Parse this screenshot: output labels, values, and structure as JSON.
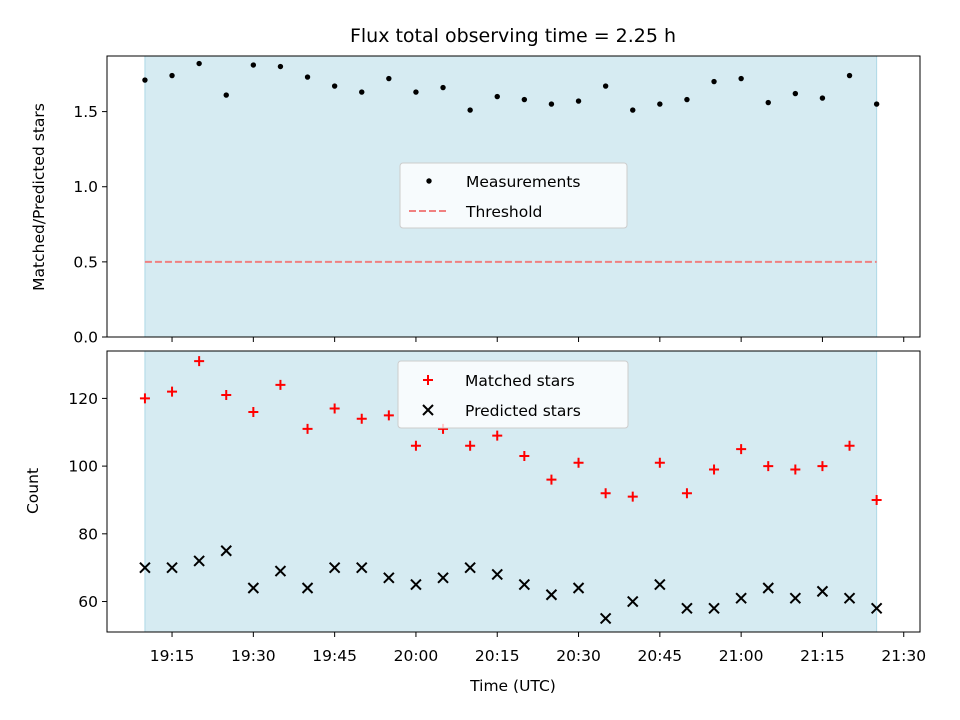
{
  "figure": {
    "title": "Flux total observing time = 2.25 h",
    "xlabel": "Time (UTC)",
    "x_tick_labels": [
      "19:15",
      "19:30",
      "19:45",
      "20:00",
      "20:15",
      "20:30",
      "20:45",
      "21:00",
      "21:15",
      "21:30"
    ]
  },
  "chart_data": [
    {
      "type": "scatter",
      "panel": "top",
      "ylabel": "Matched/Predicted stars",
      "ylim": [
        0.0,
        1.87
      ],
      "y_ticks": [
        0.0,
        0.5,
        1.0,
        1.5
      ],
      "y_tick_labels": [
        "0.0",
        "0.5",
        "1.0",
        "1.5"
      ],
      "xlim": [
        "19:03",
        "21:33"
      ],
      "observing_window": [
        "19:10",
        "21:25"
      ],
      "window_color": "#add8e6",
      "legend": "center",
      "series": [
        {
          "name": "Measurements",
          "marker": "dot",
          "color": "#000000",
          "x": [
            "19:10",
            "19:15",
            "19:20",
            "19:25",
            "19:30",
            "19:35",
            "19:40",
            "19:45",
            "19:50",
            "19:55",
            "20:00",
            "20:05",
            "20:10",
            "20:15",
            "20:20",
            "20:25",
            "20:30",
            "20:35",
            "20:40",
            "20:45",
            "20:50",
            "20:55",
            "21:00",
            "21:05",
            "21:10",
            "21:15",
            "21:20",
            "21:25"
          ],
          "y": [
            1.71,
            1.74,
            1.82,
            1.61,
            1.81,
            1.8,
            1.73,
            1.67,
            1.63,
            1.72,
            1.63,
            1.66,
            1.51,
            1.6,
            1.58,
            1.55,
            1.57,
            1.67,
            1.51,
            1.55,
            1.58,
            1.7,
            1.72,
            1.56,
            1.62,
            1.59,
            1.74,
            1.55
          ]
        },
        {
          "name": "Threshold",
          "style": "dashed",
          "color": "#f08080",
          "x": [
            "19:10",
            "21:25"
          ],
          "y": [
            0.5,
            0.5
          ]
        }
      ]
    },
    {
      "type": "scatter",
      "panel": "bottom",
      "ylabel": "Count",
      "ylim": [
        51,
        134
      ],
      "y_ticks": [
        60,
        80,
        100,
        120
      ],
      "y_tick_labels": [
        "60",
        "80",
        "100",
        "120"
      ],
      "xlim": [
        "19:03",
        "21:33"
      ],
      "observing_window": [
        "19:10",
        "21:25"
      ],
      "window_color": "#add8e6",
      "legend": "top-center",
      "x": [
        "19:10",
        "19:15",
        "19:20",
        "19:25",
        "19:30",
        "19:35",
        "19:40",
        "19:45",
        "19:50",
        "19:55",
        "20:00",
        "20:05",
        "20:10",
        "20:15",
        "20:20",
        "20:25",
        "20:30",
        "20:35",
        "20:40",
        "20:45",
        "20:50",
        "20:55",
        "21:00",
        "21:05",
        "21:10",
        "21:15",
        "21:20",
        "21:25"
      ],
      "series": [
        {
          "name": "Matched stars",
          "marker": "plus",
          "color": "#ff0000",
          "values": [
            120,
            122,
            131,
            121,
            116,
            124,
            111,
            117,
            114,
            115,
            106,
            111,
            106,
            109,
            103,
            96,
            101,
            92,
            91,
            101,
            92,
            99,
            105,
            100,
            99,
            100,
            106,
            90
          ]
        },
        {
          "name": "Predicted stars",
          "marker": "x",
          "color": "#000000",
          "values": [
            70,
            70,
            72,
            75,
            64,
            69,
            64,
            70,
            70,
            67,
            65,
            67,
            70,
            68,
            65,
            62,
            64,
            55,
            60,
            65,
            58,
            58,
            61,
            64,
            61,
            63,
            61,
            58
          ]
        }
      ]
    }
  ]
}
